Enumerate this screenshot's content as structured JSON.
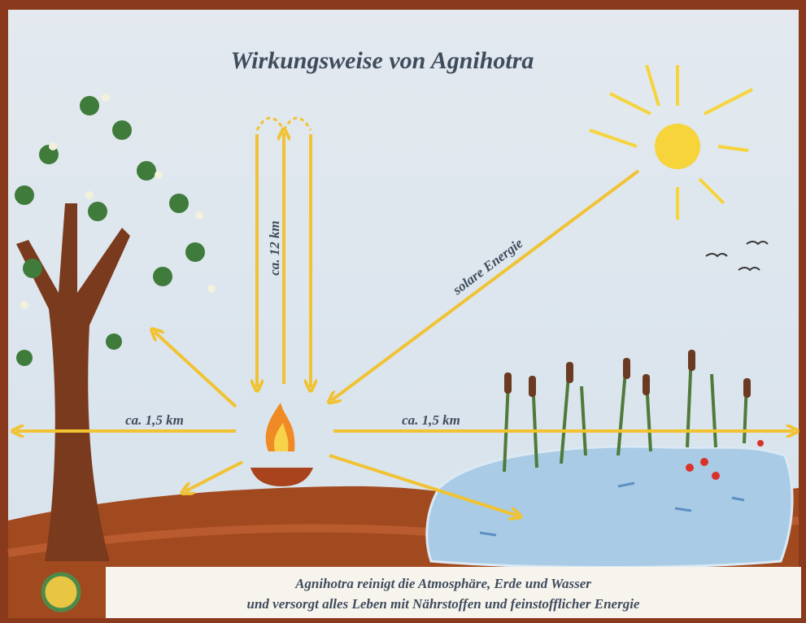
{
  "title": "Wirkungsweise von Agnihotra",
  "labels": {
    "vertical": "ca. 12 km",
    "solar": "solare Energie",
    "left": "ca. 1,5 km",
    "right": "ca. 1,5 km"
  },
  "caption": [
    "Agnihotra reinigt die Atmosphäre, Erde und Wasser",
    "und versorgt alles Leben mit Nährstoffen und feinstofflicher Energie"
  ]
}
